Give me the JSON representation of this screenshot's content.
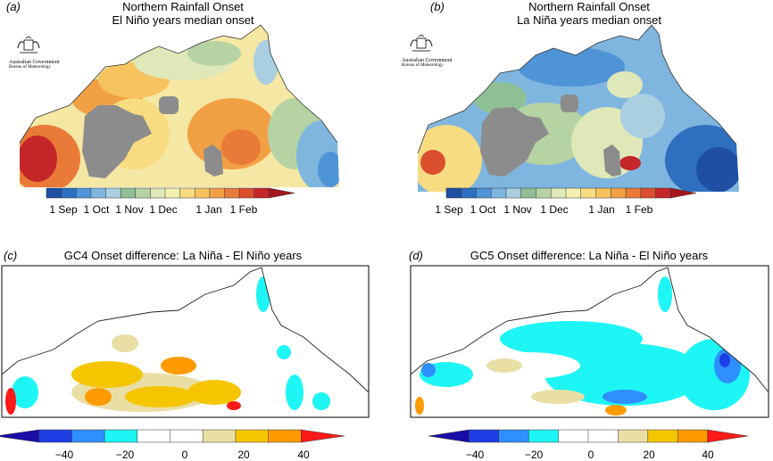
{
  "panels": [
    {
      "letter": "(a)",
      "title_line1": "Northern Rainfall Onset",
      "title_line2": "El Niño years median onset",
      "logo_line1": "Australian Government",
      "logo_line2": "Bureau of Meteorology"
    },
    {
      "letter": "(b)",
      "title_line1": "Northern Rainfall Onset",
      "title_line2": "La Niña years median onset",
      "logo_line1": "Australian Government",
      "logo_line2": "Bureau of Meteorology"
    },
    {
      "letter": "(c)",
      "title_line1": "GC4 Onset difference: La Niña - El Niño years"
    },
    {
      "letter": "(d)",
      "title_line1": "GC5 Onset difference: La Niña - El Niño years"
    }
  ],
  "chart_data": [
    {
      "type": "heatmap",
      "title": "Northern Rainfall Onset - El Niño years median onset",
      "colorbar_ticks": [
        "1 Sep",
        "1 Oct",
        "1 Nov",
        "1 Dec",
        "1 Jan",
        "1 Feb"
      ],
      "colorbar_colors": [
        "#1f4fa3",
        "#2e6fc0",
        "#4e94d6",
        "#7fb6e0",
        "#a9cfe0",
        "#8fbf94",
        "#b6d3a4",
        "#dfe8b8",
        "#f5f0b0",
        "#f7dc82",
        "#f7c35e",
        "#f2a044",
        "#ea7a37",
        "#dc4f2e",
        "#c4262a",
        "#a4161f"
      ],
      "masked_color": "#8c8c8c"
    },
    {
      "type": "heatmap",
      "title": "Northern Rainfall Onset - La Niña years median onset",
      "colorbar_ticks": [
        "1 Sep",
        "1 Oct",
        "1 Nov",
        "1 Dec",
        "1 Jan",
        "1 Feb"
      ],
      "colorbar_colors": [
        "#1f4fa3",
        "#2e6fc0",
        "#4e94d6",
        "#7fb6e0",
        "#a9cfe0",
        "#8fbf94",
        "#b6d3a4",
        "#dfe8b8",
        "#f5f0b0",
        "#f7dc82",
        "#f7c35e",
        "#f2a044",
        "#ea7a37",
        "#dc4f2e",
        "#c4262a",
        "#a4161f"
      ],
      "masked_color": "#8c8c8c"
    },
    {
      "type": "heatmap",
      "title": "GC4 Onset difference: La Niña - El Niño years",
      "colorbar_ticks": [
        "-40",
        "-20",
        "0",
        "20",
        "40"
      ],
      "colorbar_range": [
        -50,
        50
      ],
      "colorbar_colors": [
        "#1a0da6",
        "#1f3ee6",
        "#2f8fff",
        "#1ef5f5",
        "#ffffff",
        "#ffffff",
        "#e9dfa4",
        "#f5c600",
        "#ff9b00",
        "#ff1a1a"
      ]
    },
    {
      "type": "heatmap",
      "title": "GC5 Onset difference: La Niña - El Niño years",
      "colorbar_ticks": [
        "-40",
        "-20",
        "0",
        "20",
        "40"
      ],
      "colorbar_range": [
        -50,
        50
      ],
      "colorbar_colors": [
        "#1a0da6",
        "#1f3ee6",
        "#2f8fff",
        "#1ef5f5",
        "#ffffff",
        "#ffffff",
        "#e9dfa4",
        "#f5c600",
        "#ff9b00",
        "#ff1a1a"
      ]
    }
  ]
}
